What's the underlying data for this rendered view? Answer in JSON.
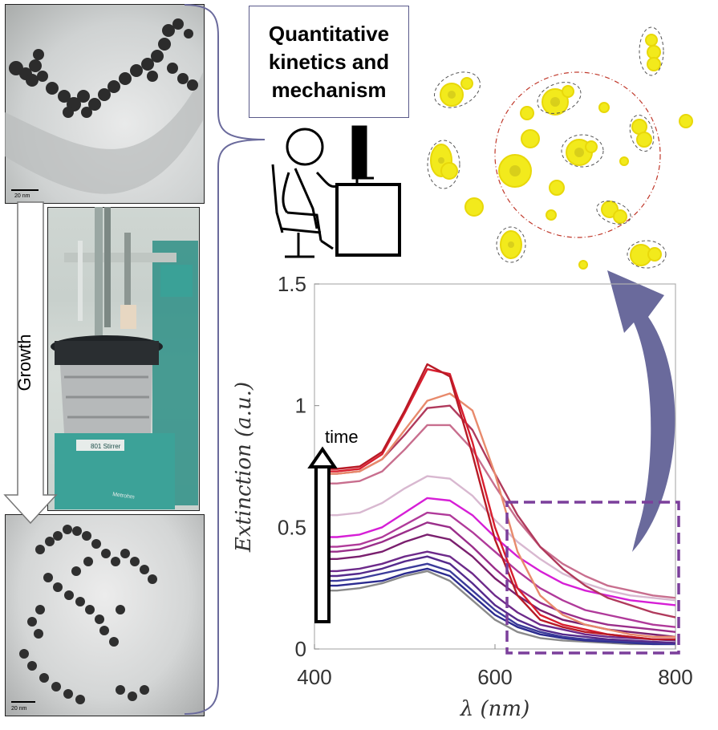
{
  "tem_top": {
    "scale_label": "20 nm"
  },
  "tem_bottom": {
    "scale_label": "20 nm"
  },
  "growth_arrow": {
    "label": "Growth"
  },
  "setup_photo": {
    "device_label": "801 Stirrer",
    "brand_label": "Metrohm"
  },
  "callout": {
    "title": "Quantitative\nkinetics and\nmechanism"
  },
  "colors": {
    "accent_arrow": "#6a6a9c",
    "highlight_box": "#7b3f9b",
    "nanoparticle_fill": "#f2ea1c",
    "mechanism_circle": "#c0392b"
  },
  "chart_data": {
    "type": "line",
    "xlabel": "λ (nm)",
    "ylabel": "Extinction (a.u.)",
    "xlim": [
      400,
      800
    ],
    "ylim": [
      0,
      1.5
    ],
    "x_ticks": [
      "400",
      "600",
      "800"
    ],
    "y_ticks": [
      "0",
      "0.5",
      "1",
      "1.5"
    ],
    "annotation": "time",
    "grid": false,
    "x": [
      400,
      425,
      450,
      475,
      500,
      525,
      550,
      575,
      600,
      625,
      650,
      675,
      700,
      725,
      750,
      775,
      800
    ],
    "series": [
      {
        "color": "#8a8a8a",
        "values": [
          0.24,
          0.24,
          0.25,
          0.27,
          0.3,
          0.32,
          0.28,
          0.2,
          0.12,
          0.07,
          0.045,
          0.035,
          0.03,
          0.025,
          0.02,
          0.02,
          0.02
        ]
      },
      {
        "color": "#2b2b8f",
        "values": [
          0.26,
          0.26,
          0.27,
          0.28,
          0.31,
          0.33,
          0.3,
          0.22,
          0.14,
          0.09,
          0.06,
          0.045,
          0.035,
          0.03,
          0.025,
          0.02,
          0.02
        ]
      },
      {
        "color": "#3b3b9a",
        "values": [
          0.28,
          0.28,
          0.29,
          0.31,
          0.33,
          0.35,
          0.32,
          0.24,
          0.16,
          0.1,
          0.07,
          0.05,
          0.04,
          0.035,
          0.03,
          0.025,
          0.02
        ]
      },
      {
        "color": "#552a8c",
        "values": [
          0.3,
          0.3,
          0.31,
          0.33,
          0.36,
          0.38,
          0.35,
          0.27,
          0.18,
          0.12,
          0.08,
          0.06,
          0.05,
          0.04,
          0.035,
          0.03,
          0.025
        ]
      },
      {
        "color": "#6d2a8a",
        "values": [
          0.32,
          0.32,
          0.33,
          0.35,
          0.38,
          0.4,
          0.38,
          0.31,
          0.22,
          0.15,
          0.1,
          0.08,
          0.06,
          0.05,
          0.045,
          0.04,
          0.035
        ]
      },
      {
        "color": "#7a1f6e",
        "values": [
          0.37,
          0.37,
          0.38,
          0.4,
          0.44,
          0.47,
          0.45,
          0.38,
          0.29,
          0.22,
          0.16,
          0.12,
          0.1,
          0.08,
          0.07,
          0.06,
          0.05
        ]
      },
      {
        "color": "#9a2e8a",
        "values": [
          0.4,
          0.4,
          0.41,
          0.44,
          0.48,
          0.52,
          0.5,
          0.42,
          0.33,
          0.25,
          0.19,
          0.15,
          0.12,
          0.1,
          0.09,
          0.08,
          0.07
        ]
      },
      {
        "color": "#b03a9a",
        "values": [
          0.42,
          0.42,
          0.43,
          0.46,
          0.51,
          0.56,
          0.55,
          0.48,
          0.4,
          0.32,
          0.25,
          0.2,
          0.16,
          0.14,
          0.12,
          0.1,
          0.09
        ]
      },
      {
        "color": "#d61fd6",
        "values": [
          0.46,
          0.46,
          0.47,
          0.5,
          0.56,
          0.62,
          0.61,
          0.55,
          0.46,
          0.38,
          0.32,
          0.27,
          0.24,
          0.22,
          0.2,
          0.19,
          0.18
        ]
      },
      {
        "color": "#d8b8d0",
        "values": [
          0.55,
          0.55,
          0.56,
          0.6,
          0.66,
          0.71,
          0.7,
          0.63,
          0.53,
          0.44,
          0.37,
          0.31,
          0.27,
          0.24,
          0.22,
          0.21,
          0.2
        ]
      },
      {
        "color": "#c86e8e",
        "values": [
          0.68,
          0.68,
          0.69,
          0.73,
          0.82,
          0.92,
          0.92,
          0.82,
          0.67,
          0.53,
          0.42,
          0.35,
          0.3,
          0.26,
          0.24,
          0.22,
          0.21
        ]
      },
      {
        "color": "#b03a5c",
        "values": [
          0.72,
          0.72,
          0.73,
          0.78,
          0.88,
          0.99,
          1.0,
          0.9,
          0.72,
          0.55,
          0.42,
          0.33,
          0.26,
          0.21,
          0.18,
          0.15,
          0.13
        ]
      },
      {
        "color": "#e88a6c",
        "values": [
          0.72,
          0.72,
          0.73,
          0.78,
          0.9,
          1.02,
          1.05,
          0.98,
          0.72,
          0.4,
          0.22,
          0.14,
          0.1,
          0.08,
          0.06,
          0.05,
          0.05
        ]
      },
      {
        "color": "#d81e2e",
        "values": [
          0.73,
          0.73,
          0.74,
          0.8,
          0.97,
          1.15,
          1.13,
          0.85,
          0.5,
          0.25,
          0.14,
          0.1,
          0.08,
          0.06,
          0.05,
          0.04,
          0.04
        ]
      },
      {
        "color": "#b81a26",
        "values": [
          0.74,
          0.74,
          0.75,
          0.81,
          0.98,
          1.17,
          1.12,
          0.8,
          0.45,
          0.22,
          0.12,
          0.09,
          0.07,
          0.06,
          0.05,
          0.04,
          0.04
        ]
      }
    ]
  }
}
